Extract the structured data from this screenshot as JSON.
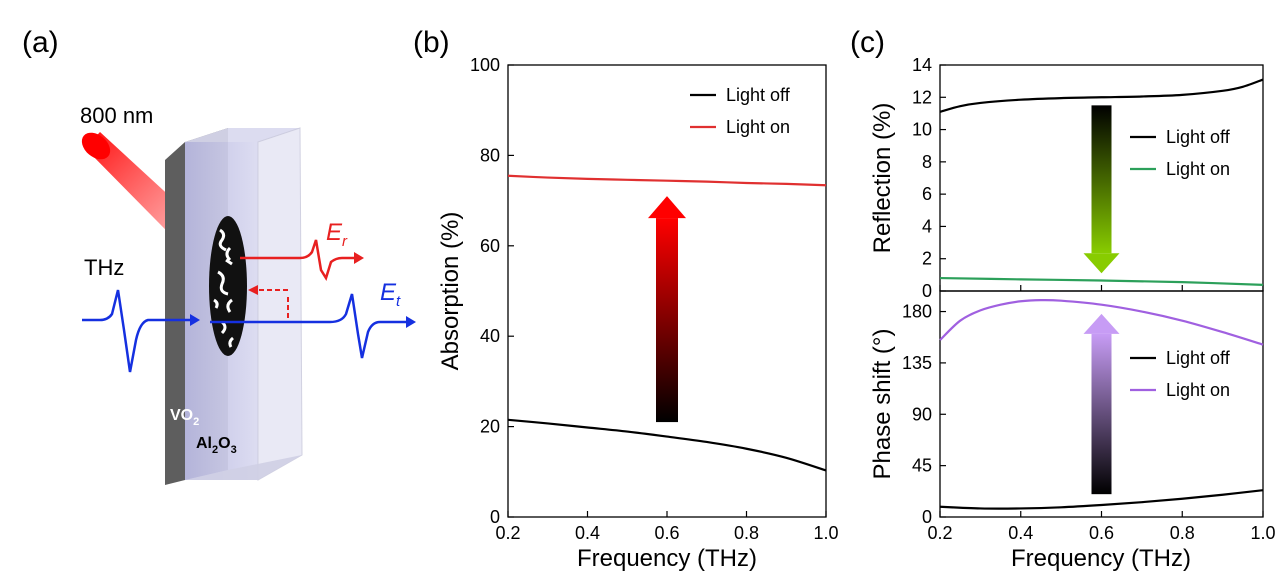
{
  "panel_labels": [
    "(a)",
    "(b)",
    "(c)"
  ],
  "illustration": {
    "laser_label": "800 nm",
    "thz_label": "THz",
    "er_label_main": "E",
    "er_label_sub": "r",
    "et_label_main": "E",
    "et_label_sub": "t",
    "vo2_main": "VO",
    "vo2_sub": "2",
    "al_main": "Al",
    "al_sub1": "2",
    "al_mid": "O",
    "al_sub2": "3",
    "colors": {
      "laser": "#ff1a1a",
      "reflected": "#e82020",
      "transmitted": "#1530e0",
      "substrate": "#c9c9e8",
      "film": "#6e6e6e"
    }
  },
  "chart_data": [
    {
      "id": "b",
      "type": "line",
      "title": "",
      "xlabel": "Frequency (THz)",
      "ylabel": "Absorption (%)",
      "xlim": [
        0.2,
        1.0
      ],
      "ylim": [
        0,
        100
      ],
      "xticks": [
        "0.2",
        "0.4",
        "0.6",
        "0.8",
        "1.0"
      ],
      "yticks": [
        "0",
        "20",
        "40",
        "60",
        "80",
        "100"
      ],
      "legend": "top-right",
      "series": [
        {
          "name": "Light off",
          "color": "#000000",
          "x": [
            0.2,
            0.3,
            0.4,
            0.5,
            0.6,
            0.7,
            0.8,
            0.9,
            1.0
          ],
          "y": [
            21.5,
            20.7,
            19.8,
            18.9,
            17.8,
            16.6,
            15.1,
            13.1,
            10.3
          ]
        },
        {
          "name": "Light on",
          "color": "#e03030",
          "x": [
            0.2,
            0.3,
            0.4,
            0.5,
            0.6,
            0.7,
            0.8,
            0.9,
            1.0
          ],
          "y": [
            75.5,
            75.1,
            74.8,
            74.6,
            74.4,
            74.2,
            73.9,
            73.7,
            73.4
          ]
        }
      ],
      "arrow": {
        "direction": "up",
        "from": 21,
        "to": 71,
        "x": 0.6,
        "color_start": "#000000",
        "color_end": "#ff0000"
      }
    },
    {
      "id": "c-top",
      "type": "line",
      "title": "",
      "xlabel": "",
      "ylabel": "Reflection (%)",
      "xlim": [
        0.2,
        1.0
      ],
      "ylim": [
        0,
        14
      ],
      "xticks": [],
      "yticks": [
        "0",
        "2",
        "4",
        "6",
        "8",
        "10",
        "12",
        "14"
      ],
      "legend": "middle-right",
      "series": [
        {
          "name": "Light off",
          "color": "#000000",
          "x": [
            0.2,
            0.25,
            0.3,
            0.4,
            0.5,
            0.6,
            0.7,
            0.8,
            0.9,
            0.95,
            1.0
          ],
          "y": [
            11.1,
            11.45,
            11.65,
            11.85,
            11.95,
            12.0,
            12.05,
            12.15,
            12.4,
            12.65,
            13.1
          ]
        },
        {
          "name": "Light on",
          "color": "#2ca05a",
          "x": [
            0.2,
            0.4,
            0.6,
            0.8,
            1.0
          ],
          "y": [
            0.8,
            0.72,
            0.65,
            0.55,
            0.38
          ]
        }
      ],
      "arrow": {
        "direction": "down",
        "from": 11.5,
        "to": 1.1,
        "x": 0.6,
        "color_start": "#000000",
        "color_end": "#88cc00"
      }
    },
    {
      "id": "c-bottom",
      "type": "line",
      "title": "",
      "xlabel": "Frequency (THz)",
      "ylabel": "Phase shift (°)",
      "xlim": [
        0.2,
        1.0
      ],
      "ylim": [
        0,
        198
      ],
      "xticks": [
        "0.2",
        "0.4",
        "0.6",
        "0.8",
        "1.0"
      ],
      "yticks": [
        "0",
        "45",
        "90",
        "135",
        "180"
      ],
      "legend": "middle-right",
      "series": [
        {
          "name": "Light off",
          "color": "#000000",
          "x": [
            0.2,
            0.3,
            0.4,
            0.5,
            0.6,
            0.7,
            0.8,
            0.9,
            1.0
          ],
          "y": [
            9,
            7.5,
            7.5,
            8.5,
            10.5,
            13,
            16,
            19.5,
            23.5
          ]
        },
        {
          "name": "Light on",
          "color": "#a060e0",
          "x": [
            0.2,
            0.25,
            0.3,
            0.35,
            0.4,
            0.45,
            0.5,
            0.6,
            0.7,
            0.8,
            0.9,
            1.0
          ],
          "y": [
            155,
            172,
            181,
            186,
            189,
            190,
            189.5,
            186,
            180,
            172,
            162,
            151
          ]
        }
      ],
      "arrow": {
        "direction": "up",
        "from": 20,
        "to": 178,
        "x": 0.6,
        "color_start": "#000000",
        "color_end": "#c79cf5"
      }
    }
  ]
}
